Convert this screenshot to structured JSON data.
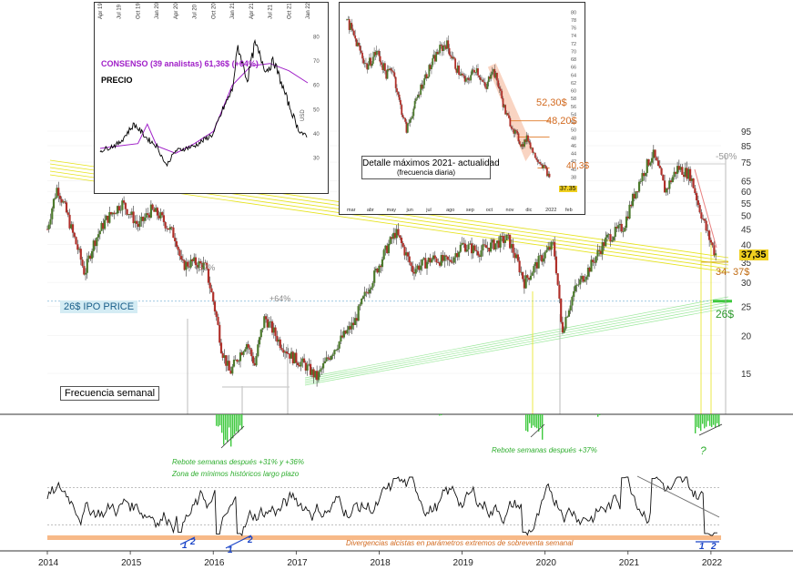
{
  "colors": {
    "up": "#4c7a2c",
    "down": "#b0302a",
    "wick": "#333333",
    "yellow": "#e6e31a",
    "green": "#3ec93e",
    "orange": "#f5a86a",
    "blue": "#1a44c8",
    "purple": "#a020c8",
    "grey": "#999999",
    "price_tag": "#f0d020"
  },
  "chart_data": [
    {
      "type": "candlestick",
      "frequency_label": "Frecuencia semanal",
      "x_ticks": [
        "2014",
        "2015",
        "2016",
        "2017",
        "2018",
        "2019",
        "2020",
        "2021",
        "2022"
      ],
      "y_scale": "log",
      "y_ticks": [
        15,
        20,
        25,
        30,
        35,
        40,
        45,
        50,
        55,
        60,
        65,
        75,
        85,
        95
      ],
      "last_price_label": "37,35",
      "ipo_label": "26$ IPO PRICE",
      "support_label": "26$",
      "target_zone_label": "34- 37$",
      "rebound_labels": [
        "+52%",
        "+64%",
        "-50%"
      ],
      "annotations": {
        "rebote_2016": "Rebote semanas después +31% y +36%",
        "zona_minimos": "Zona de mínimos históricos largo plazo",
        "rebote_2019": "Rebote semanas después +37%",
        "question": "?",
        "divergence_note": "Divergencias alcistas en parámetros extremos de sobreventa semanal"
      },
      "divergence_markers": [
        "1",
        "2",
        "1",
        "2",
        "1",
        "2"
      ],
      "price_path": [
        {
          "x": 2014.0,
          "y": 45
        },
        {
          "x": 2014.12,
          "y": 62
        },
        {
          "x": 2014.3,
          "y": 44
        },
        {
          "x": 2014.45,
          "y": 32
        },
        {
          "x": 2014.55,
          "y": 40
        },
        {
          "x": 2014.7,
          "y": 48
        },
        {
          "x": 2014.9,
          "y": 55
        },
        {
          "x": 2015.1,
          "y": 46
        },
        {
          "x": 2015.25,
          "y": 52
        },
        {
          "x": 2015.35,
          "y": 50
        },
        {
          "x": 2015.55,
          "y": 42
        },
        {
          "x": 2015.62,
          "y": 34
        },
        {
          "x": 2015.75,
          "y": 35
        },
        {
          "x": 2015.9,
          "y": 34
        },
        {
          "x": 2016.1,
          "y": 18
        },
        {
          "x": 2016.2,
          "y": 15
        },
        {
          "x": 2016.3,
          "y": 17
        },
        {
          "x": 2016.4,
          "y": 19
        },
        {
          "x": 2016.5,
          "y": 16
        },
        {
          "x": 2016.62,
          "y": 23
        },
        {
          "x": 2016.8,
          "y": 19
        },
        {
          "x": 2016.95,
          "y": 17
        },
        {
          "x": 2017.1,
          "y": 16
        },
        {
          "x": 2017.25,
          "y": 14.5
        },
        {
          "x": 2017.45,
          "y": 18
        },
        {
          "x": 2017.7,
          "y": 22
        },
        {
          "x": 2017.95,
          "y": 32
        },
        {
          "x": 2018.2,
          "y": 44
        },
        {
          "x": 2018.4,
          "y": 33
        },
        {
          "x": 2018.65,
          "y": 36
        },
        {
          "x": 2018.85,
          "y": 35
        },
        {
          "x": 2019.0,
          "y": 40
        },
        {
          "x": 2019.2,
          "y": 38
        },
        {
          "x": 2019.55,
          "y": 42
        },
        {
          "x": 2019.75,
          "y": 30
        },
        {
          "x": 2019.95,
          "y": 36
        },
        {
          "x": 2020.1,
          "y": 40
        },
        {
          "x": 2020.2,
          "y": 20.5
        },
        {
          "x": 2020.35,
          "y": 28
        },
        {
          "x": 2020.55,
          "y": 34
        },
        {
          "x": 2020.75,
          "y": 42
        },
        {
          "x": 2020.95,
          "y": 46
        },
        {
          "x": 2021.15,
          "y": 66
        },
        {
          "x": 2021.3,
          "y": 80
        },
        {
          "x": 2021.45,
          "y": 60
        },
        {
          "x": 2021.6,
          "y": 72
        },
        {
          "x": 2021.75,
          "y": 68
        },
        {
          "x": 2021.85,
          "y": 54
        },
        {
          "x": 2021.95,
          "y": 44
        },
        {
          "x": 2022.05,
          "y": 37.35
        }
      ]
    },
    {
      "type": "line",
      "title": "Detalle máximos 2021- actualidad",
      "subtitle": "(frecuencia diaria)",
      "x_ticks": [
        "mar",
        "abr",
        "may",
        "jun",
        "jul",
        "ago",
        "sep",
        "oct",
        "nov",
        "dic",
        "2022",
        "feb"
      ],
      "y_ticks": [
        38,
        40,
        42,
        44,
        46,
        48,
        50,
        52,
        54,
        56,
        58,
        60,
        62,
        64,
        66,
        68,
        70,
        72,
        74,
        76,
        78,
        80
      ],
      "levels": [
        "52,30$",
        "48,20$",
        "40,3$"
      ],
      "last_label": "37.35",
      "price_path": [
        {
          "x": 0,
          "y": 78
        },
        {
          "x": 0.5,
          "y": 72
        },
        {
          "x": 1,
          "y": 66
        },
        {
          "x": 1.5,
          "y": 70
        },
        {
          "x": 2,
          "y": 64
        },
        {
          "x": 2.3,
          "y": 66
        },
        {
          "x": 2.6,
          "y": 58
        },
        {
          "x": 3,
          "y": 50
        },
        {
          "x": 3.4,
          "y": 56
        },
        {
          "x": 3.8,
          "y": 62
        },
        {
          "x": 4.2,
          "y": 66
        },
        {
          "x": 4.6,
          "y": 70
        },
        {
          "x": 5,
          "y": 72
        },
        {
          "x": 5.5,
          "y": 66
        },
        {
          "x": 6,
          "y": 62
        },
        {
          "x": 6.5,
          "y": 66
        },
        {
          "x": 7,
          "y": 60
        },
        {
          "x": 7.3,
          "y": 66
        },
        {
          "x": 7.6,
          "y": 62
        },
        {
          "x": 8,
          "y": 54
        },
        {
          "x": 8.4,
          "y": 50
        },
        {
          "x": 8.8,
          "y": 46
        },
        {
          "x": 9.1,
          "y": 48
        },
        {
          "x": 9.4,
          "y": 44
        },
        {
          "x": 9.7,
          "y": 42
        },
        {
          "x": 10,
          "y": 40
        },
        {
          "x": 10.2,
          "y": 37.5
        }
      ]
    },
    {
      "type": "line",
      "series": [
        {
          "name": "CONSENSO (39 analistas) 61,36$ (+64%)"
        },
        {
          "name": "PRECIO"
        }
      ],
      "x_ticks": [
        "Apr 19",
        "Jul 19",
        "Oct 19",
        "Jan 20",
        "Apr 20",
        "Jul 20",
        "Oct 20",
        "Jan 21",
        "Apr 21",
        "Jul 21",
        "Oct 21",
        "Jan 22"
      ],
      "y_ticks": [
        30,
        40,
        50,
        60,
        70,
        80
      ],
      "y_label": "USD",
      "consensus_path": [
        {
          "x": 0,
          "y": 34
        },
        {
          "x": 1,
          "y": 35
        },
        {
          "x": 2,
          "y": 36
        },
        {
          "x": 2.5,
          "y": 44
        },
        {
          "x": 3,
          "y": 35
        },
        {
          "x": 4,
          "y": 32
        },
        {
          "x": 5,
          "y": 36
        },
        {
          "x": 6,
          "y": 41
        },
        {
          "x": 7,
          "y": 60
        },
        {
          "x": 8,
          "y": 68
        },
        {
          "x": 9,
          "y": 69
        },
        {
          "x": 10,
          "y": 66
        },
        {
          "x": 11,
          "y": 61
        }
      ],
      "price_path": [
        {
          "x": 0,
          "y": 33
        },
        {
          "x": 1,
          "y": 36
        },
        {
          "x": 1.8,
          "y": 44
        },
        {
          "x": 2.5,
          "y": 38
        },
        {
          "x": 3,
          "y": 35
        },
        {
          "x": 3.5,
          "y": 27
        },
        {
          "x": 4,
          "y": 33
        },
        {
          "x": 5,
          "y": 35
        },
        {
          "x": 6,
          "y": 40
        },
        {
          "x": 6.5,
          "y": 50
        },
        {
          "x": 7,
          "y": 58
        },
        {
          "x": 7.3,
          "y": 76
        },
        {
          "x": 7.8,
          "y": 62
        },
        {
          "x": 8.2,
          "y": 77
        },
        {
          "x": 8.8,
          "y": 66
        },
        {
          "x": 9.2,
          "y": 70
        },
        {
          "x": 10,
          "y": 52
        },
        {
          "x": 10.5,
          "y": 42
        },
        {
          "x": 11,
          "y": 38
        }
      ]
    }
  ]
}
